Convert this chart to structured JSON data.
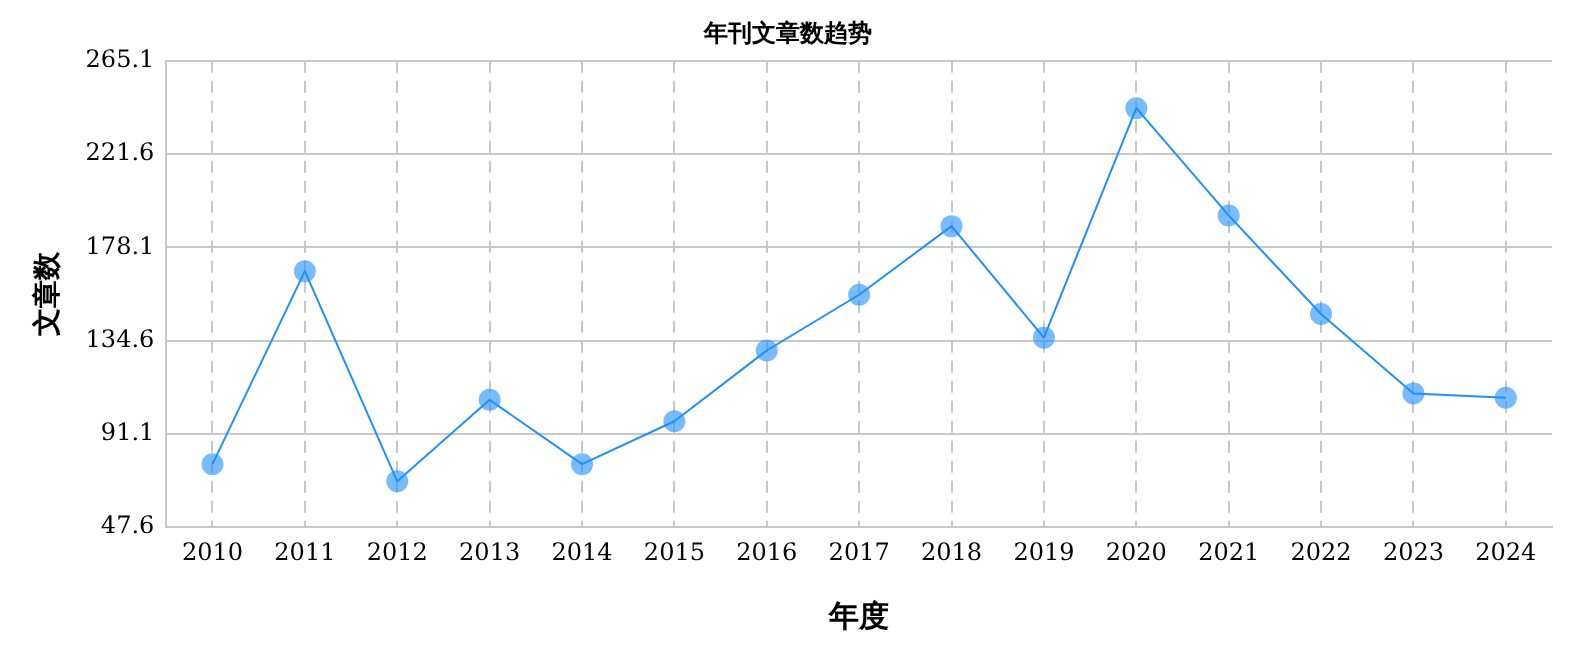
{
  "chart_data": {
    "type": "line",
    "title": "年刊文章数趋势",
    "xlabel": "年度",
    "ylabel": "文章数",
    "categories": [
      "2010",
      "2011",
      "2012",
      "2013",
      "2014",
      "2015",
      "2016",
      "2017",
      "2018",
      "2019",
      "2020",
      "2021",
      "2022",
      "2023",
      "2024"
    ],
    "series": [
      {
        "color": "#1e90ff",
        "values": [
          77,
          167,
          69,
          107,
          77,
          97,
          130,
          156,
          188,
          136,
          243,
          193,
          147,
          110,
          108
        ]
      }
    ],
    "ylim": [
      47.6,
      265.1
    ],
    "yticks": [
      47.6,
      91.1,
      134.6,
      178.1,
      221.6,
      265.1
    ],
    "grid": true,
    "legend": false,
    "marker": "circle",
    "line_style": "solid"
  }
}
